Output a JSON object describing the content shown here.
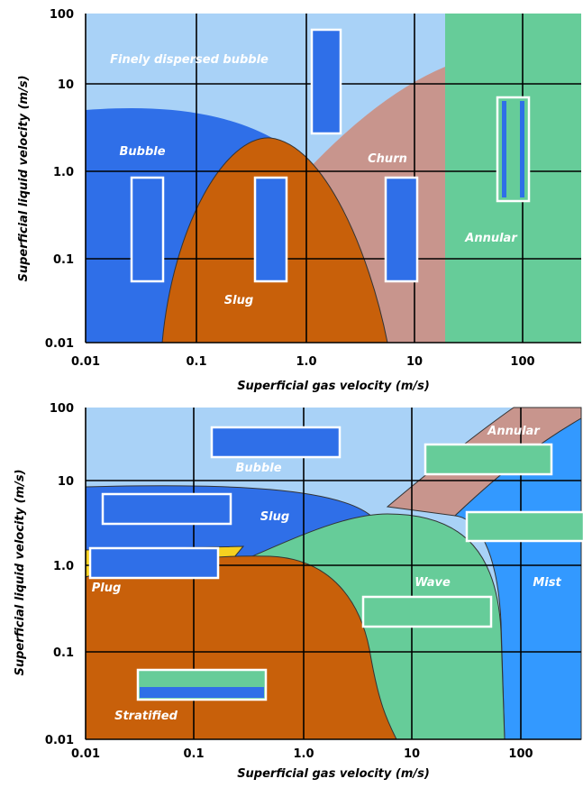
{
  "panels": [
    {
      "x_axis_label": "Superficial gas velocity (m/s)",
      "y_axis_label": "Superficial liquid velocity (m/s)",
      "x_ticks": [
        "0.01",
        "0.1",
        "1.0",
        "10",
        "100"
      ],
      "y_ticks": [
        "100",
        "10",
        "1.0",
        "0.1",
        "0.01"
      ],
      "regions": [
        "Finely dispersed bubble",
        "Bubble",
        "Churn",
        "Slug",
        "Annular"
      ]
    },
    {
      "x_axis_label": "Superficial gas velocity (m/s)",
      "y_axis_label": "Superficial liquid velocity (m/s)",
      "x_ticks": [
        "0.01",
        "0.1",
        "1.0",
        "10",
        "100"
      ],
      "y_ticks": [
        "100",
        "10",
        "1.0",
        "0.1",
        "0.01"
      ],
      "regions": [
        "Bubble",
        "Annular",
        "Slug",
        "Plug",
        "Wave",
        "Mist",
        "Stratified"
      ]
    }
  ]
}
